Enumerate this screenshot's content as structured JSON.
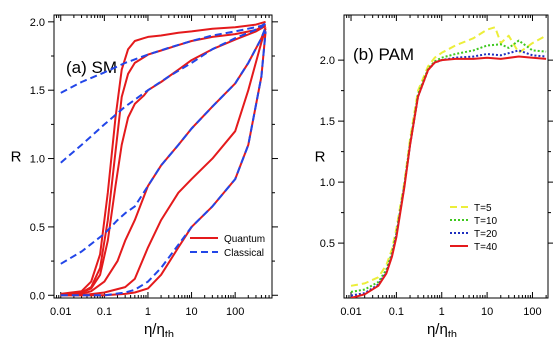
{
  "chart_data": [
    {
      "type": "line",
      "panel_label": "(a) SM",
      "xlabel": "η/η",
      "xlabel_sub": "th",
      "ylabel": "R",
      "xscale": "log",
      "xlim": [
        0.007,
        700
      ],
      "ylim": [
        -0.02,
        2.05
      ],
      "xticks": [
        0.01,
        0.1,
        1,
        10,
        100
      ],
      "xtick_labels": [
        "0.01",
        "0.1",
        "1",
        "10",
        "100"
      ],
      "yticks": [
        0,
        0.5,
        1,
        1.5,
        2
      ],
      "ytick_labels": [
        "0.0",
        "0.5",
        "1.0",
        "1.5",
        "2.0"
      ],
      "legend": {
        "position": "lower-right",
        "entries": [
          {
            "label": "Quantum",
            "color": "#e41a1c",
            "style": "solid"
          },
          {
            "label": "Classical",
            "color": "#2246e8",
            "style": "dashed"
          }
        ]
      },
      "series": [
        {
          "group": "Quantum",
          "color": "#e41a1c",
          "style": "solid",
          "x": [
            0.01,
            0.03,
            0.05,
            0.08,
            0.12,
            0.18,
            0.25,
            0.35,
            0.5,
            0.8,
            1,
            2,
            5,
            10,
            30,
            100,
            300,
            500
          ],
          "y": [
            0.01,
            0.03,
            0.1,
            0.3,
            0.75,
            1.3,
            1.65,
            1.8,
            1.86,
            1.88,
            1.89,
            1.9,
            1.92,
            1.93,
            1.95,
            1.96,
            1.98,
            2.0
          ]
        },
        {
          "group": "Quantum",
          "color": "#e41a1c",
          "style": "solid",
          "x": [
            0.01,
            0.03,
            0.05,
            0.08,
            0.12,
            0.18,
            0.25,
            0.35,
            0.5,
            0.8,
            1,
            2,
            5,
            10,
            30,
            100,
            300,
            500
          ],
          "y": [
            0.0,
            0.02,
            0.06,
            0.2,
            0.55,
            1.05,
            1.45,
            1.62,
            1.7,
            1.74,
            1.76,
            1.79,
            1.83,
            1.86,
            1.89,
            1.91,
            1.94,
            1.98
          ]
        },
        {
          "group": "Quantum",
          "color": "#e41a1c",
          "style": "solid",
          "x": [
            0.01,
            0.03,
            0.05,
            0.08,
            0.12,
            0.18,
            0.25,
            0.35,
            0.5,
            0.8,
            1,
            2,
            5,
            10,
            30,
            100,
            300,
            500
          ],
          "y": [
            0.0,
            0.02,
            0.05,
            0.15,
            0.4,
            0.8,
            1.1,
            1.3,
            1.4,
            1.46,
            1.5,
            1.56,
            1.65,
            1.72,
            1.8,
            1.87,
            1.93,
            1.97
          ]
        },
        {
          "group": "Quantum",
          "color": "#e41a1c",
          "style": "solid",
          "x": [
            0.01,
            0.03,
            0.05,
            0.1,
            0.2,
            0.3,
            0.5,
            1,
            2,
            5,
            10,
            30,
            100,
            200,
            400,
            500
          ],
          "y": [
            0.0,
            0.01,
            0.03,
            0.1,
            0.25,
            0.4,
            0.55,
            0.8,
            0.95,
            1.1,
            1.22,
            1.38,
            1.55,
            1.7,
            1.88,
            1.96
          ]
        },
        {
          "group": "Quantum",
          "color": "#e41a1c",
          "style": "solid",
          "x": [
            0.01,
            0.03,
            0.1,
            0.3,
            0.5,
            1,
            2,
            5,
            10,
            30,
            100,
            200,
            400,
            500
          ],
          "y": [
            0.0,
            0.0,
            0.02,
            0.06,
            0.12,
            0.35,
            0.55,
            0.75,
            0.85,
            1.0,
            1.2,
            1.5,
            1.85,
            1.95
          ]
        },
        {
          "group": "Quantum",
          "color": "#e41a1c",
          "style": "solid",
          "x": [
            0.01,
            0.1,
            0.3,
            0.5,
            1,
            2,
            5,
            10,
            30,
            100,
            200,
            400,
            500
          ],
          "y": [
            0.0,
            0.0,
            0.01,
            0.02,
            0.05,
            0.15,
            0.35,
            0.5,
            0.65,
            0.85,
            1.1,
            1.6,
            1.93
          ]
        },
        {
          "group": "Classical",
          "color": "#2246e8",
          "style": "dashed",
          "x": [
            0.01,
            0.03,
            0.1,
            0.3,
            1,
            3,
            10,
            30,
            100,
            200,
            400,
            500
          ],
          "y": [
            1.48,
            1.56,
            1.63,
            1.7,
            1.76,
            1.81,
            1.86,
            1.9,
            1.93,
            1.95,
            1.97,
            1.99
          ]
        },
        {
          "group": "Classical",
          "color": "#2246e8",
          "style": "dashed",
          "x": [
            0.01,
            0.03,
            0.1,
            0.3,
            1,
            3,
            10,
            30,
            100,
            200,
            400,
            500
          ],
          "y": [
            0.97,
            1.1,
            1.25,
            1.38,
            1.5,
            1.6,
            1.7,
            1.8,
            1.88,
            1.92,
            1.96,
            1.99
          ]
        },
        {
          "group": "Classical",
          "color": "#2246e8",
          "style": "dashed",
          "x": [
            0.01,
            0.03,
            0.1,
            0.2,
            0.3,
            0.5,
            1,
            2,
            5,
            10,
            30,
            100,
            200,
            400,
            500
          ],
          "y": [
            0.23,
            0.32,
            0.45,
            0.55,
            0.6,
            0.65,
            0.8,
            0.95,
            1.1,
            1.22,
            1.38,
            1.55,
            1.7,
            1.88,
            1.96
          ]
        },
        {
          "group": "Classical",
          "color": "#2246e8",
          "style": "dashed",
          "x": [
            0.01,
            0.1,
            0.3,
            0.5,
            1,
            2,
            5,
            10,
            30,
            100,
            200,
            400,
            500
          ],
          "y": [
            0.0,
            0.0,
            0.02,
            0.04,
            0.1,
            0.2,
            0.37,
            0.5,
            0.65,
            0.85,
            1.1,
            1.6,
            1.93
          ]
        }
      ]
    },
    {
      "type": "line",
      "panel_label": "(b) PAM",
      "xlabel": "η/η",
      "xlabel_sub": "th",
      "ylabel": "R",
      "xscale": "log",
      "xlim": [
        0.007,
        220
      ],
      "ylim": [
        0.05,
        2.37
      ],
      "xticks": [
        0.01,
        0.1,
        1,
        10,
        100
      ],
      "xtick_labels": [
        "0.01",
        "0.1",
        "1",
        "10",
        "100"
      ],
      "yticks": [
        0.5,
        1,
        1.5,
        2
      ],
      "ytick_labels": [
        "0.5",
        "1.0",
        "1.5",
        "2.0"
      ],
      "legend": {
        "position": "lower-right",
        "entries": [
          {
            "label": "T=5",
            "color": "#ecee3a",
            "style": "dashed"
          },
          {
            "label": "T=10",
            "color": "#3ec81e",
            "style": "dotted"
          },
          {
            "label": "T=20",
            "color": "#1f2fbf",
            "style": "dotted"
          },
          {
            "label": "T=40",
            "color": "#e41a1c",
            "style": "solid"
          }
        ]
      },
      "series": [
        {
          "name": "T=5",
          "color": "#ecee3a",
          "style": "dashed",
          "x": [
            0.01,
            0.02,
            0.04,
            0.06,
            0.08,
            0.1,
            0.15,
            0.2,
            0.3,
            0.5,
            0.7,
            1,
            2,
            5,
            10,
            15,
            20,
            30,
            50,
            100,
            200
          ],
          "y": [
            0.15,
            0.17,
            0.22,
            0.32,
            0.45,
            0.62,
            1.0,
            1.35,
            1.75,
            1.95,
            2.02,
            2.06,
            2.12,
            2.18,
            2.25,
            2.27,
            2.14,
            2.2,
            2.06,
            2.14,
            2.2
          ]
        },
        {
          "name": "T=10",
          "color": "#3ec81e",
          "style": "dotted",
          "x": [
            0.01,
            0.02,
            0.04,
            0.06,
            0.08,
            0.1,
            0.15,
            0.2,
            0.3,
            0.5,
            0.7,
            1,
            2,
            5,
            10,
            20,
            30,
            50,
            100,
            200
          ],
          "y": [
            0.1,
            0.12,
            0.18,
            0.28,
            0.42,
            0.58,
            0.98,
            1.32,
            1.72,
            1.93,
            1.99,
            2.02,
            2.05,
            2.08,
            2.12,
            2.13,
            2.1,
            2.16,
            2.08,
            2.07
          ]
        },
        {
          "name": "T=20",
          "color": "#1f2fbf",
          "style": "dotted",
          "x": [
            0.01,
            0.02,
            0.04,
            0.06,
            0.08,
            0.1,
            0.15,
            0.2,
            0.3,
            0.5,
            0.7,
            1,
            2,
            5,
            10,
            20,
            50,
            100,
            200
          ],
          "y": [
            0.07,
            0.09,
            0.16,
            0.26,
            0.4,
            0.57,
            0.97,
            1.3,
            1.7,
            1.92,
            1.98,
            2.0,
            2.02,
            2.03,
            2.05,
            2.04,
            2.08,
            2.04,
            2.03
          ]
        },
        {
          "name": "T=40",
          "color": "#e41a1c",
          "style": "solid",
          "x": [
            0.01,
            0.02,
            0.04,
            0.06,
            0.08,
            0.1,
            0.15,
            0.2,
            0.3,
            0.5,
            0.7,
            1,
            2,
            5,
            10,
            20,
            50,
            100,
            200
          ],
          "y": [
            0.05,
            0.08,
            0.15,
            0.25,
            0.39,
            0.55,
            0.96,
            1.3,
            1.7,
            1.92,
            1.98,
            2.0,
            2.01,
            2.01,
            2.02,
            2.01,
            2.03,
            2.02,
            2.01
          ]
        }
      ]
    }
  ]
}
